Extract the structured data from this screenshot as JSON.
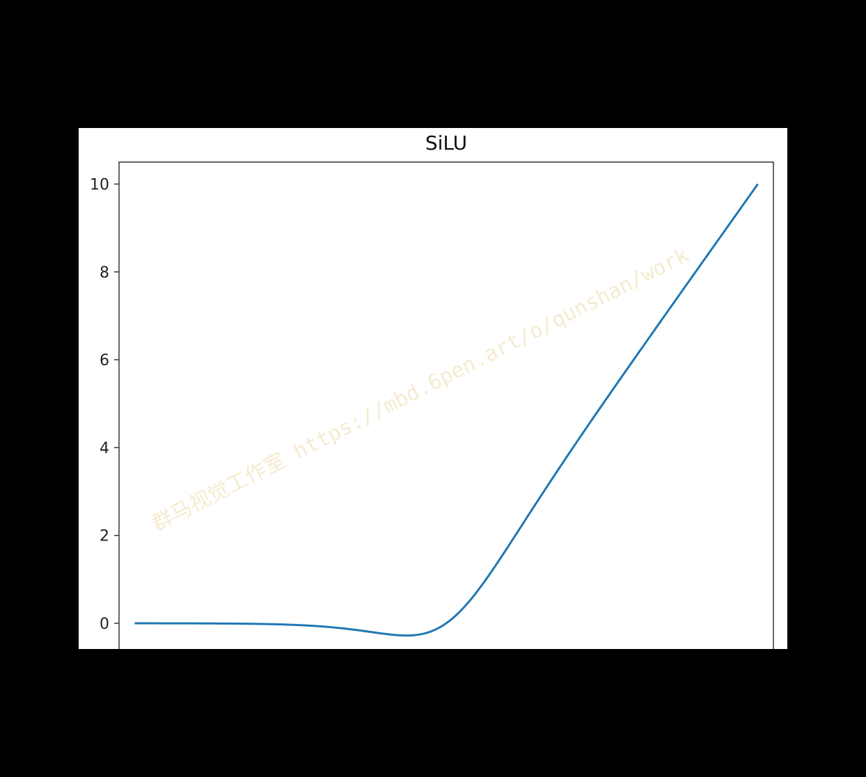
{
  "chart_data": {
    "type": "line",
    "title": "SiLU",
    "xlabel": "",
    "ylabel": "",
    "xlim": [
      -10.5,
      10.5
    ],
    "ylim": [
      -0.76,
      10.5
    ],
    "yticks": [
      0,
      2,
      4,
      6,
      8,
      10
    ],
    "ytick_labels": [
      "0",
      "2",
      "4",
      "6",
      "8",
      "10"
    ],
    "grid": false,
    "series": [
      {
        "color": "#1f77b4",
        "function": "x / (1 + exp(-x))",
        "x_range": [
          -10,
          10
        ],
        "x_step": 0.1
      }
    ]
  },
  "watermark": {
    "text": "群马视觉工作室 https://mbd.6pen.art/o/qunshan/work"
  }
}
